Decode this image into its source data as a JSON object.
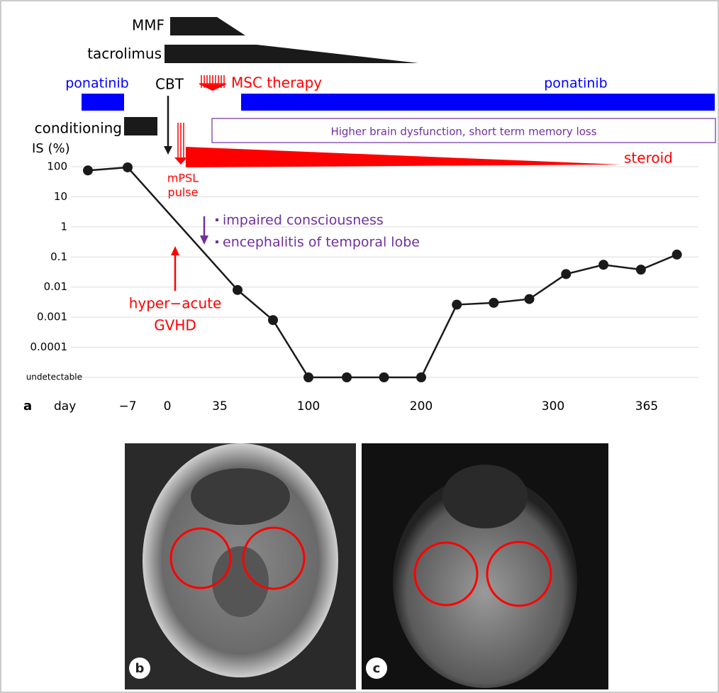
{
  "chart_data": {
    "type": "line",
    "panel_label": "a",
    "x_label": "day",
    "y_label": "IS (%)",
    "x": [
      -14,
      -7,
      48,
      74,
      100,
      134,
      167,
      200,
      227,
      255,
      282,
      309,
      335,
      361,
      386
    ],
    "xticks": [
      {
        "value": -7,
        "label": "−7"
      },
      0,
      35,
      100,
      200,
      300,
      365
    ],
    "series": [
      {
        "color": "#1a1a1a",
        "values": [
          75,
          95,
          0.008,
          0.0008,
          1e-05,
          1e-05,
          1e-05,
          1e-05,
          0.0026,
          0.003,
          0.004,
          0.027,
          0.055,
          0.038,
          0.12
        ]
      }
    ],
    "ylim": [
      1e-05,
      100
    ],
    "log_scale": true,
    "grid": true,
    "yticks": [
      100,
      10,
      1,
      0.1,
      0.01,
      0.001,
      0.0001,
      {
        "value": 1e-05,
        "label": "undetectable"
      }
    ]
  },
  "timeline": {
    "mmf": "MMF",
    "tacrolimus": "tacrolimus",
    "ponatinib_pre": "ponatinib",
    "cbt": "CBT",
    "msc": "MSC therapy",
    "ponatinib_post": "ponatinib",
    "conditioning": "conditioning",
    "brain_dysfunction": "Higher brain dysfunction, short term memory loss",
    "steroid": "steroid",
    "mpsl_1": "mPSL",
    "mpsl_2": "pulse",
    "impaired": "impaired consciousness",
    "encephalitis": "encephalitis of temporal lobe",
    "gvhd_1": "hyper−acute",
    "gvhd_2": "GVHD"
  },
  "images": [
    {
      "label": "b"
    },
    {
      "label": "c"
    }
  ]
}
